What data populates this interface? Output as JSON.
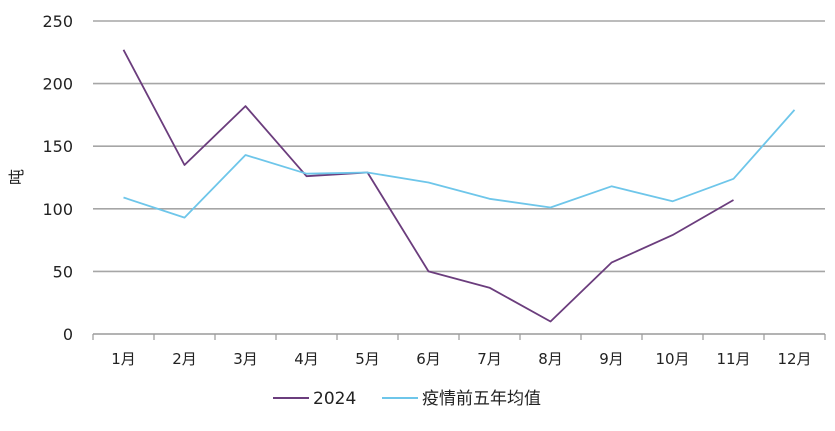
{
  "chart_data": {
    "type": "line",
    "ylabel": "吨",
    "categories": [
      "1月",
      "2月",
      "3月",
      "4月",
      "5月",
      "6月",
      "7月",
      "8月",
      "9月",
      "10月",
      "11月",
      "12月"
    ],
    "ylim": [
      0,
      250
    ],
    "yticks": [
      0,
      50,
      100,
      150,
      200,
      250
    ],
    "grid": true,
    "legend_position": "bottom",
    "series": [
      {
        "name": "2024",
        "color": "#6b3d7d",
        "values": [
          227,
          135,
          182,
          126,
          129,
          50,
          37,
          10,
          57,
          79,
          107,
          null
        ]
      },
      {
        "name": "疫情前五年均值",
        "color": "#6ec6ea",
        "values": [
          109,
          93,
          143,
          128,
          129,
          121,
          108,
          101,
          118,
          106,
          124,
          179
        ]
      }
    ]
  }
}
